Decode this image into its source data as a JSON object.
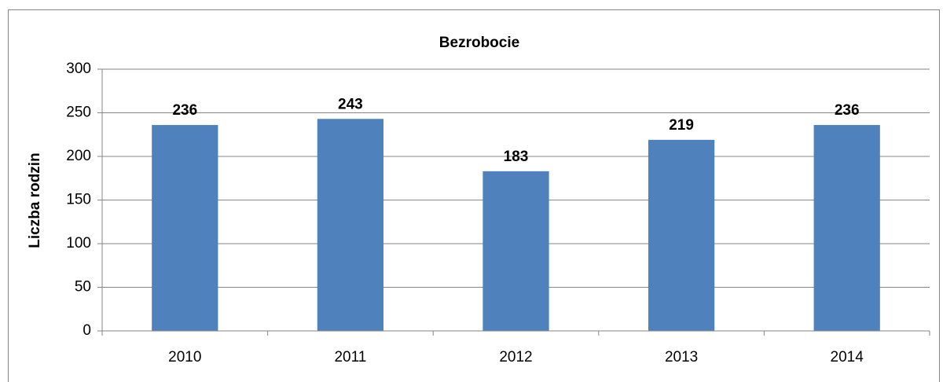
{
  "chart_data": {
    "type": "bar",
    "title": "Bezrobocie",
    "y_label": "Liczba rodzin",
    "categories": [
      "2010",
      "2011",
      "2012",
      "2013",
      "2014"
    ],
    "values": [
      236,
      243,
      183,
      219,
      236
    ],
    "color": "#4f81bd",
    "ylim": [
      0,
      300
    ],
    "yticks": [
      0,
      50,
      100,
      150,
      200,
      250,
      300
    ],
    "grid": true
  }
}
